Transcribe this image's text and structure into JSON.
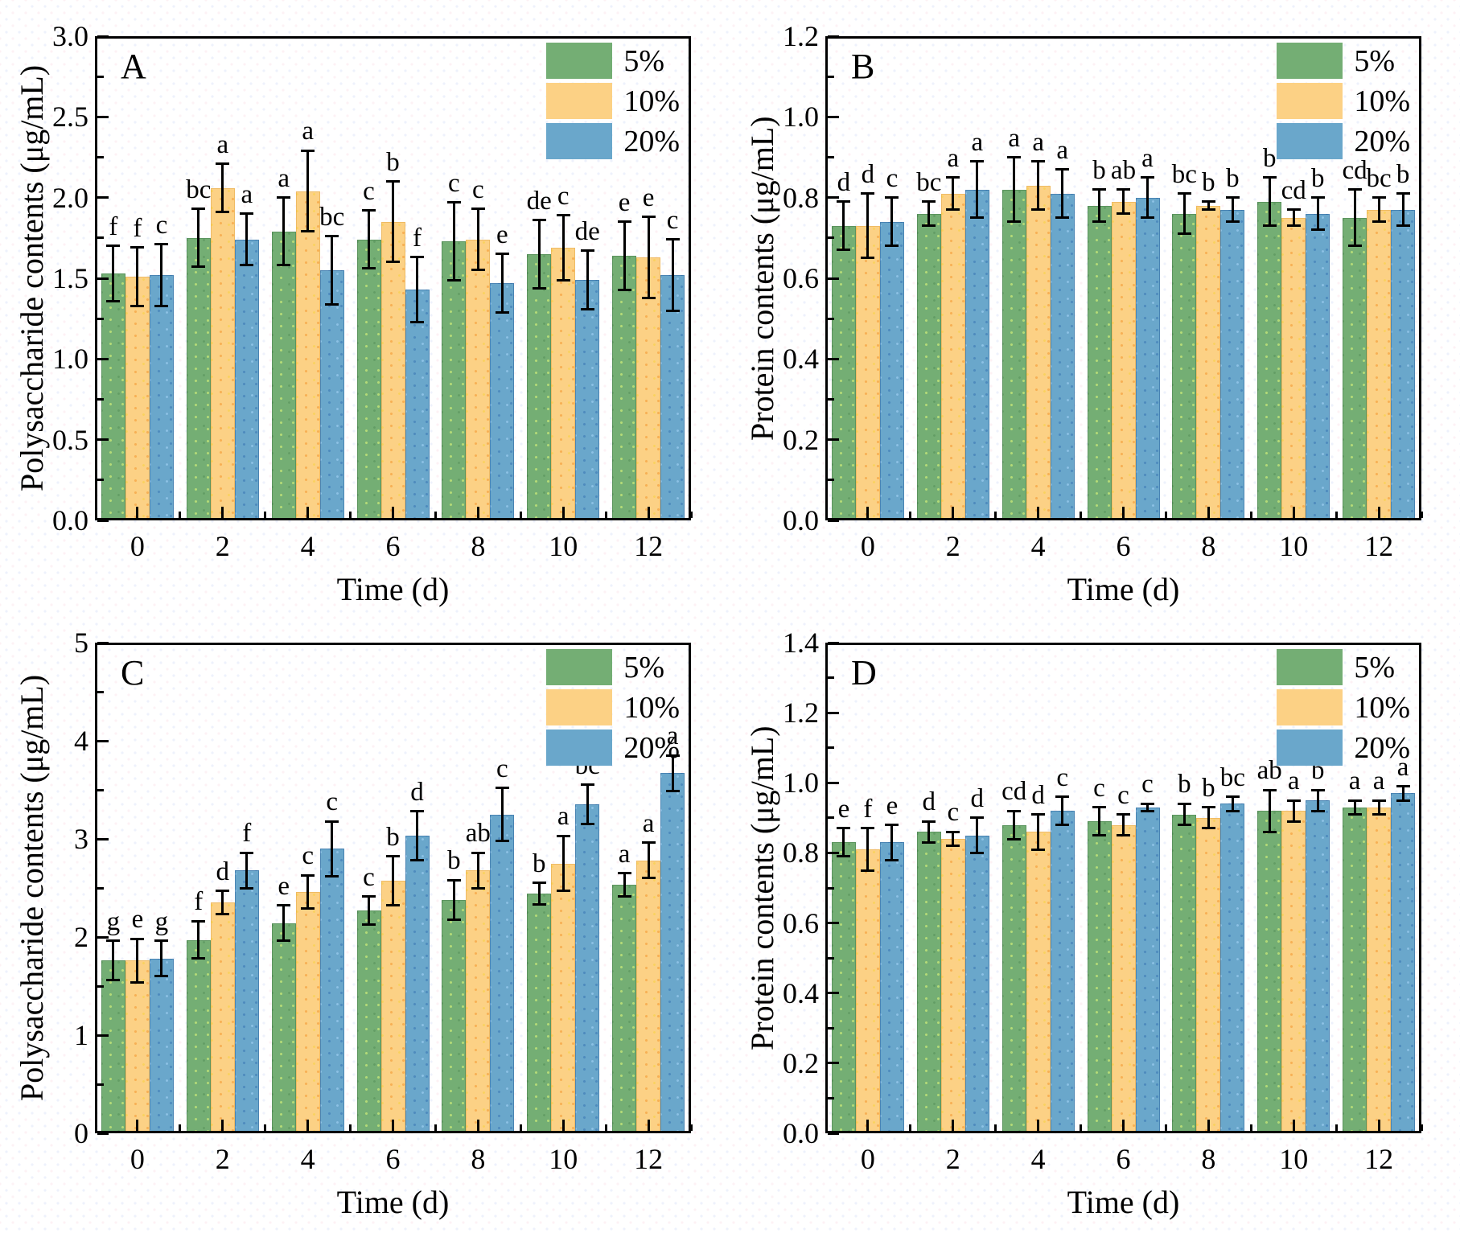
{
  "figure": {
    "background": "#ffffff",
    "frame_color": "#000000",
    "series_colors": {
      "5%": "#74ae74",
      "10%": "#fcd185",
      "20%": "#6aa7cb"
    },
    "legend_labels": [
      "5%",
      "10%",
      "20%"
    ]
  },
  "chart_data": [
    {
      "panel": "A",
      "type": "bar",
      "ylabel": "Polysaccharide contents (μg/mL)",
      "xlabel": "Time (d)",
      "ylim": [
        0,
        3.0
      ],
      "ytick_step": 0.5,
      "ytick_decimals": 1,
      "xlim": [
        -1,
        13
      ],
      "categories": [
        0,
        2,
        4,
        6,
        8,
        10,
        12
      ],
      "legend_position": "top-right",
      "series": [
        {
          "name": "5%",
          "values": [
            1.53,
            1.75,
            1.79,
            1.74,
            1.73,
            1.65,
            1.64
          ],
          "errors": [
            0.17,
            0.18,
            0.21,
            0.18,
            0.24,
            0.21,
            0.21
          ],
          "letters": [
            "f",
            "bc",
            "a",
            "c",
            "c",
            "de",
            "e"
          ]
        },
        {
          "name": "10%",
          "values": [
            1.51,
            2.06,
            2.04,
            1.85,
            1.74,
            1.69,
            1.63
          ],
          "errors": [
            0.18,
            0.15,
            0.25,
            0.25,
            0.19,
            0.2,
            0.25
          ],
          "letters": [
            "f",
            "a",
            "a",
            "b",
            "c",
            "c",
            "e"
          ]
        },
        {
          "name": "20%",
          "values": [
            1.52,
            1.74,
            1.55,
            1.43,
            1.47,
            1.49,
            1.52
          ],
          "errors": [
            0.19,
            0.16,
            0.21,
            0.2,
            0.18,
            0.18,
            0.22
          ],
          "letters": [
            "c",
            "a",
            "bc",
            "f",
            "e",
            "de",
            "c"
          ]
        }
      ]
    },
    {
      "panel": "B",
      "type": "bar",
      "ylabel": "Protein contents (μg/mL)",
      "xlabel": "Time (d)",
      "ylim": [
        0,
        1.2
      ],
      "ytick_step": 0.2,
      "ytick_decimals": 1,
      "xlim": [
        -1,
        13
      ],
      "categories": [
        0,
        2,
        4,
        6,
        8,
        10,
        12
      ],
      "legend_position": "top-right",
      "series": [
        {
          "name": "5%",
          "values": [
            0.73,
            0.76,
            0.82,
            0.78,
            0.76,
            0.79,
            0.75
          ],
          "errors": [
            0.06,
            0.03,
            0.08,
            0.04,
            0.05,
            0.06,
            0.07
          ],
          "letters": [
            "d",
            "bc",
            "a",
            "b",
            "bc",
            "b",
            "cd"
          ]
        },
        {
          "name": "10%",
          "values": [
            0.73,
            0.81,
            0.83,
            0.79,
            0.78,
            0.75,
            0.77
          ],
          "errors": [
            0.08,
            0.04,
            0.06,
            0.03,
            0.01,
            0.02,
            0.03
          ],
          "letters": [
            "d",
            "a",
            "a",
            "ab",
            "b",
            "cd",
            "bc"
          ]
        },
        {
          "name": "20%",
          "values": [
            0.74,
            0.82,
            0.81,
            0.8,
            0.77,
            0.76,
            0.77
          ],
          "errors": [
            0.06,
            0.07,
            0.06,
            0.05,
            0.03,
            0.04,
            0.04
          ],
          "letters": [
            "c",
            "a",
            "a",
            "a",
            "b",
            "b",
            "b"
          ]
        }
      ]
    },
    {
      "panel": "C",
      "type": "bar",
      "ylabel": "Polysaccharide contents (μg/mL)",
      "xlabel": "Time (d)",
      "ylim": [
        0,
        5
      ],
      "ytick_step": 1,
      "ytick_decimals": 0,
      "xlim": [
        -1,
        13
      ],
      "categories": [
        0,
        2,
        4,
        6,
        8,
        10,
        12
      ],
      "legend_position": "top-right",
      "series": [
        {
          "name": "5%",
          "values": [
            1.76,
            1.97,
            2.14,
            2.27,
            2.38,
            2.44,
            2.53
          ],
          "errors": [
            0.2,
            0.19,
            0.18,
            0.14,
            0.2,
            0.11,
            0.12
          ],
          "letters": [
            "g",
            "f",
            "e",
            "c",
            "b",
            "b",
            "a"
          ]
        },
        {
          "name": "10%",
          "values": [
            1.76,
            2.35,
            2.46,
            2.57,
            2.68,
            2.75,
            2.78
          ],
          "errors": [
            0.22,
            0.12,
            0.17,
            0.25,
            0.18,
            0.28,
            0.18
          ],
          "letters": [
            "e",
            "d",
            "c",
            "b",
            "ab",
            "a",
            "a"
          ]
        },
        {
          "name": "20%",
          "values": [
            1.78,
            2.68,
            2.9,
            3.03,
            3.25,
            3.35,
            3.67
          ],
          "errors": [
            0.18,
            0.18,
            0.28,
            0.25,
            0.27,
            0.2,
            0.18
          ],
          "letters": [
            "g",
            "f",
            "c",
            "d",
            "c",
            "bc",
            "a"
          ]
        }
      ]
    },
    {
      "panel": "D",
      "type": "bar",
      "ylabel": "Protein contents (μg/mL)",
      "xlabel": "Time (d)",
      "ylim": [
        0,
        1.4
      ],
      "ytick_step": 0.2,
      "ytick_decimals": 1,
      "xlim": [
        -1,
        13
      ],
      "categories": [
        0,
        2,
        4,
        6,
        8,
        10,
        12
      ],
      "legend_position": "top-right",
      "series": [
        {
          "name": "5%",
          "values": [
            0.83,
            0.86,
            0.88,
            0.89,
            0.91,
            0.92,
            0.93
          ],
          "errors": [
            0.04,
            0.03,
            0.04,
            0.04,
            0.03,
            0.06,
            0.02
          ],
          "letters": [
            "e",
            "d",
            "cd",
            "c",
            "b",
            "ab",
            "a"
          ]
        },
        {
          "name": "10%",
          "values": [
            0.81,
            0.84,
            0.86,
            0.88,
            0.9,
            0.92,
            0.93
          ],
          "errors": [
            0.06,
            0.02,
            0.05,
            0.03,
            0.03,
            0.03,
            0.02
          ],
          "letters": [
            "f",
            "c",
            "d",
            "c",
            "b",
            "a",
            "a"
          ]
        },
        {
          "name": "20%",
          "values": [
            0.83,
            0.85,
            0.92,
            0.93,
            0.94,
            0.95,
            0.97
          ],
          "errors": [
            0.05,
            0.05,
            0.04,
            0.01,
            0.02,
            0.03,
            0.02
          ],
          "letters": [
            "e",
            "d",
            "c",
            "c",
            "bc",
            "b",
            "a"
          ]
        }
      ]
    }
  ]
}
